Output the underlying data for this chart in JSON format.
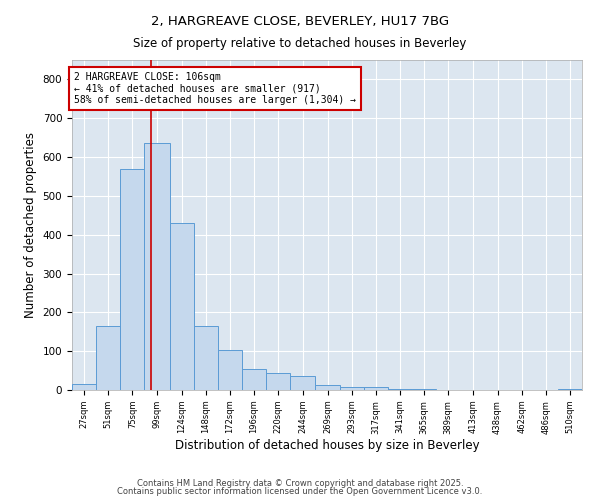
{
  "title_line1": "2, HARGREAVE CLOSE, BEVERLEY, HU17 7BG",
  "title_line2": "Size of property relative to detached houses in Beverley",
  "xlabel": "Distribution of detached houses by size in Beverley",
  "ylabel": "Number of detached properties",
  "bins": [
    27,
    51,
    75,
    99,
    124,
    148,
    172,
    196,
    220,
    244,
    269,
    293,
    317,
    341,
    365,
    389,
    413,
    438,
    462,
    486,
    510
  ],
  "counts": [
    15,
    165,
    570,
    635,
    430,
    165,
    103,
    55,
    45,
    35,
    12,
    8,
    8,
    3,
    3,
    0,
    0,
    0,
    0,
    0,
    2
  ],
  "bar_color": "#c5d8ed",
  "bar_edge_color": "#5b9bd5",
  "background_color": "#dce6f0",
  "red_line_x": 106,
  "annotation_title": "2 HARGREAVE CLOSE: 106sqm",
  "annotation_line2": "← 41% of detached houses are smaller (917)",
  "annotation_line3": "58% of semi-detached houses are larger (1,304) →",
  "annotation_box_color": "#ffffff",
  "annotation_box_edge_color": "#cc0000",
  "ylim": [
    0,
    850
  ],
  "yticks": [
    0,
    100,
    200,
    300,
    400,
    500,
    600,
    700,
    800
  ],
  "footer_line1": "Contains HM Land Registry data © Crown copyright and database right 2025.",
  "footer_line2": "Contains public sector information licensed under the Open Government Licence v3.0."
}
